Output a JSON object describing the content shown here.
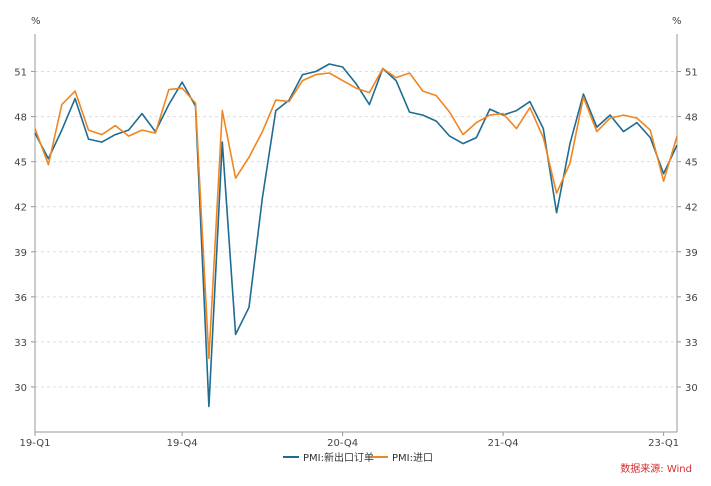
{
  "chart_data": {
    "type": "line",
    "title": "",
    "left_unit": "%",
    "right_unit": "%",
    "ylim": [
      27,
      53.5
    ],
    "y_ticks": [
      30,
      33,
      36,
      39,
      42,
      45,
      48,
      51
    ],
    "y_tick_labels": [
      "30",
      "33",
      "36",
      "39",
      "42",
      "45",
      "48",
      "51"
    ],
    "x_ticks": [
      {
        "index": 0,
        "label": "19-Q1"
      },
      {
        "index": 11,
        "label": "19-Q4"
      },
      {
        "index": 23,
        "label": "20-Q4"
      },
      {
        "index": 35,
        "label": "21-Q4"
      },
      {
        "index": 47,
        "label": "23-Q1"
      }
    ],
    "colors": {
      "series1": "#1f6c93",
      "series2": "#f0861f",
      "grid": "#dddddd",
      "axis": "#999999",
      "source": "#d62d2d"
    },
    "series": [
      {
        "name": "PMI:新出口订单",
        "values": [
          46.9,
          45.2,
          47.1,
          49.2,
          46.5,
          46.3,
          46.8,
          47.1,
          48.2,
          47.0,
          48.8,
          50.3,
          48.7,
          28.7,
          46.3,
          33.5,
          35.3,
          42.6,
          48.4,
          49.1,
          50.8,
          51.0,
          51.5,
          51.3,
          50.2,
          48.8,
          51.2,
          50.4,
          48.3,
          48.1,
          47.7,
          46.7,
          46.2,
          46.6,
          48.5,
          48.1,
          48.4,
          49.0,
          47.2,
          41.6,
          46.2,
          49.5,
          47.3,
          48.1,
          47.0,
          47.6,
          46.6,
          44.2,
          46.1
        ]
      },
      {
        "name": "PMI:进口",
        "values": [
          47.2,
          44.8,
          48.8,
          49.7,
          47.1,
          46.8,
          47.4,
          46.7,
          47.1,
          46.9,
          49.8,
          49.9,
          48.9,
          31.9,
          48.4,
          43.9,
          45.3,
          47.0,
          49.1,
          49.0,
          50.4,
          50.8,
          50.9,
          50.4,
          49.9,
          49.6,
          51.2,
          50.6,
          50.9,
          49.7,
          49.4,
          48.3,
          46.8,
          47.6,
          48.1,
          48.2,
          47.2,
          48.6,
          46.6,
          42.9,
          44.9,
          49.3,
          47.0,
          47.9,
          48.1,
          47.9,
          47.1,
          43.7,
          46.7
        ]
      }
    ],
    "legend_position": "bottom",
    "grid": true,
    "source_note": "数据来源: Wind"
  }
}
